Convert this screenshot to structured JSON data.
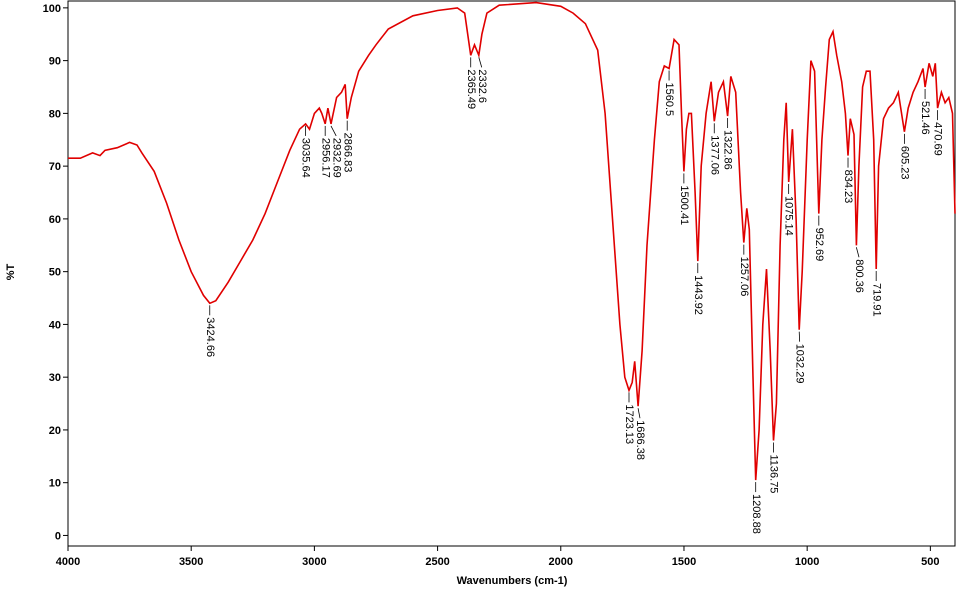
{
  "chart_data": {
    "type": "line",
    "x_label": "Wavenumbers (cm-1)",
    "y_label": "%T",
    "xlim": [
      4000,
      400
    ],
    "ylim": [
      -2,
      101.3
    ],
    "xticks": [
      4000,
      3500,
      3000,
      2500,
      2000,
      1500,
      1000,
      500
    ],
    "yticks": [
      0,
      10,
      20,
      30,
      40,
      50,
      60,
      70,
      80,
      90,
      100
    ],
    "series": [
      {
        "color": "#e00000",
        "x": [
          4000,
          3950,
          3900,
          3870,
          3850,
          3800,
          3750,
          3720,
          3700,
          3650,
          3600,
          3550,
          3500,
          3450,
          3424.66,
          3400,
          3350,
          3300,
          3250,
          3200,
          3150,
          3100,
          3060,
          3035.64,
          3020,
          3000,
          2980,
          2970,
          2956.17,
          2945,
          2932.69,
          2910,
          2890,
          2875,
          2866.83,
          2850,
          2820,
          2780,
          2750,
          2700,
          2600,
          2500,
          2420,
          2390,
          2365.49,
          2350,
          2332.6,
          2320,
          2300,
          2250,
          2100,
          2000,
          1950,
          1900,
          1850,
          1820,
          1790,
          1760,
          1740,
          1723.13,
          1710,
          1700,
          1686.38,
          1670,
          1650,
          1620,
          1600,
          1580,
          1560.5,
          1540,
          1520,
          1510,
          1500.41,
          1490,
          1480,
          1470,
          1455,
          1443.92,
          1430,
          1410,
          1390,
          1377.06,
          1360,
          1340,
          1322.86,
          1310,
          1290,
          1270,
          1257.06,
          1245,
          1235,
          1220,
          1208.88,
          1195,
          1180,
          1165,
          1150,
          1136.75,
          1125,
          1110,
          1095,
          1085,
          1075.14,
          1060,
          1045,
          1032.29,
          1020,
          1000,
          985,
          970,
          952.69,
          940,
          925,
          910,
          895,
          880,
          860,
          845,
          834.23,
          825,
          810,
          800.36,
          790,
          775,
          760,
          745,
          730,
          719.91,
          710,
          690,
          670,
          650,
          630,
          605.23,
          590,
          570,
          550,
          530,
          521.46,
          505,
          490,
          480,
          470.69,
          455,
          440,
          425,
          410,
          400
        ],
        "values": [
          71.5,
          71.5,
          72.5,
          72,
          73,
          73.5,
          74.5,
          74,
          72.5,
          69,
          63,
          56,
          50,
          45.5,
          44,
          44.5,
          48,
          52,
          56,
          61,
          67,
          73,
          77,
          78,
          77,
          80,
          81,
          80,
          78,
          81,
          78,
          83,
          84,
          85.5,
          79,
          83,
          88,
          91,
          93,
          96,
          98.5,
          99.5,
          100,
          99,
          91,
          93,
          91,
          95,
          99,
          100.5,
          101,
          100.3,
          99,
          97,
          92,
          80,
          60,
          40,
          30,
          27.5,
          29,
          33,
          24.5,
          35,
          55,
          75,
          86,
          89,
          88.5,
          94,
          93,
          80,
          69,
          77,
          80,
          80,
          65,
          52,
          70,
          80,
          86,
          78.5,
          84,
          86,
          79.5,
          87,
          84,
          65,
          55.5,
          62,
          58,
          30,
          10.5,
          20,
          40,
          50.5,
          35,
          18,
          25,
          55,
          75,
          82,
          67,
          77,
          60,
          39,
          50,
          75,
          90,
          88,
          61,
          75,
          85,
          94,
          95.5,
          91,
          86,
          80,
          72,
          79,
          76,
          55,
          70,
          85,
          88,
          88,
          75,
          50.5,
          70,
          79,
          81,
          82,
          84,
          76.5,
          81,
          84,
          86,
          88.5,
          85,
          89.5,
          87,
          89.5,
          81,
          84,
          82,
          83,
          80,
          61
        ]
      }
    ],
    "peaks": [
      {
        "x": 3424.66,
        "y": 44
      },
      {
        "x": 3035.64,
        "y": 78
      },
      {
        "x": 2956.17,
        "y": 78
      },
      {
        "x": 2932.69,
        "y": 78
      },
      {
        "x": 2866.83,
        "y": 79
      },
      {
        "x": 2365.49,
        "y": 91
      },
      {
        "x": 2332.6,
        "y": 91
      },
      {
        "x": 1723.13,
        "y": 27.5
      },
      {
        "x": 1686.38,
        "y": 24.5
      },
      {
        "x": 1560.5,
        "y": 88.5
      },
      {
        "x": 1500.41,
        "y": 69
      },
      {
        "x": 1443.92,
        "y": 52
      },
      {
        "x": 1377.06,
        "y": 78.5
      },
      {
        "x": 1322.86,
        "y": 79.5
      },
      {
        "x": 1257.06,
        "y": 55.5
      },
      {
        "x": 1208.88,
        "y": 10.5
      },
      {
        "x": 1136.75,
        "y": 18
      },
      {
        "x": 1075.14,
        "y": 67
      },
      {
        "x": 1032.29,
        "y": 39
      },
      {
        "x": 952.69,
        "y": 61
      },
      {
        "x": 834.23,
        "y": 72
      },
      {
        "x": 800.36,
        "y": 55
      },
      {
        "x": 719.91,
        "y": 50.5
      },
      {
        "x": 605.23,
        "y": 76.5
      },
      {
        "x": 521.46,
        "y": 85
      },
      {
        "x": 470.69,
        "y": 81
      }
    ]
  }
}
